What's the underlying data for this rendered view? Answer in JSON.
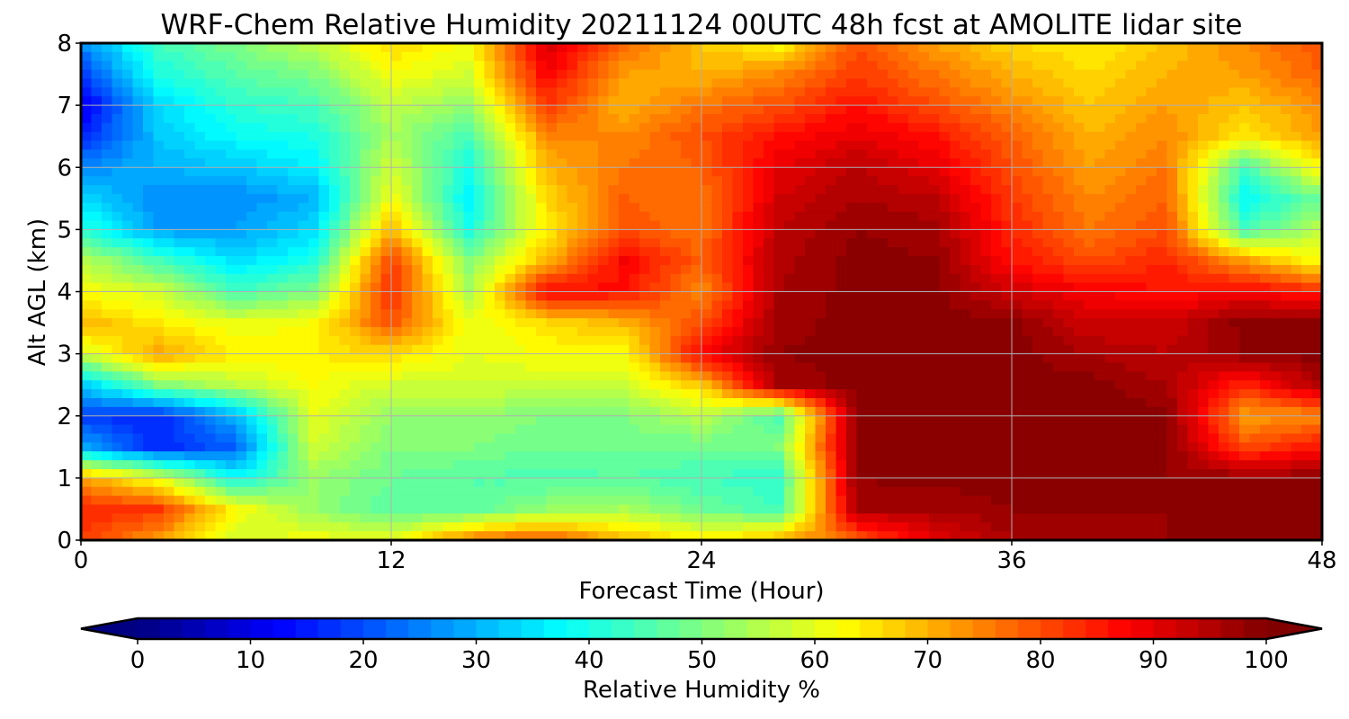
{
  "chart_data": {
    "type": "heatmap",
    "title": "WRF-Chem Relative Humidity 20211124 00UTC 48h fcst at AMOLITE lidar site",
    "xlabel": "Forecast Time (Hour)",
    "ylabel": "Alt AGL (km)",
    "xlim": [
      0,
      48
    ],
    "ylim": [
      0,
      8
    ],
    "xticks": [
      "0",
      "12",
      "24",
      "36",
      "48"
    ],
    "yticks": [
      "0",
      "1",
      "2",
      "3",
      "4",
      "5",
      "6",
      "7",
      "8"
    ],
    "grid": true,
    "colorbar": {
      "label": "Relative Humidity %",
      "range": [
        0,
        100
      ],
      "ticks": [
        "0",
        "10",
        "20",
        "30",
        "40",
        "50",
        "60",
        "70",
        "80",
        "90",
        "100"
      ],
      "extend": "both",
      "colormap": "jet",
      "levels": 50
    },
    "x": [
      0,
      3,
      6,
      9,
      12,
      15,
      18,
      21,
      24,
      27,
      30,
      33,
      36,
      39,
      42,
      45,
      48
    ],
    "y": [
      0,
      0.5,
      1,
      1.5,
      2,
      2.5,
      3,
      3.5,
      4,
      4.5,
      5,
      5.5,
      6,
      6.5,
      7,
      7.5,
      8
    ],
    "z": [
      [
        82,
        72,
        58,
        62,
        60,
        76,
        80,
        70,
        64,
        70,
        78,
        90,
        96,
        96,
        98,
        98,
        98
      ],
      [
        84,
        82,
        62,
        52,
        46,
        46,
        52,
        54,
        48,
        44,
        96,
        96,
        98,
        98,
        98,
        98,
        98
      ],
      [
        72,
        60,
        38,
        52,
        48,
        46,
        45,
        46,
        44,
        42,
        98,
        99,
        99,
        99,
        98,
        98,
        98
      ],
      [
        30,
        16,
        22,
        58,
        50,
        50,
        48,
        48,
        48,
        50,
        99,
        99,
        99,
        99,
        99,
        80,
        86
      ],
      [
        18,
        16,
        30,
        60,
        52,
        52,
        50,
        50,
        56,
        44,
        99,
        99,
        99,
        99,
        99,
        72,
        74
      ],
      [
        32,
        50,
        56,
        62,
        58,
        58,
        58,
        58,
        68,
        96,
        99,
        99,
        99,
        99,
        96,
        84,
        96
      ],
      [
        58,
        72,
        64,
        64,
        66,
        60,
        62,
        62,
        88,
        98,
        99,
        99,
        99,
        96,
        94,
        98,
        99
      ],
      [
        70,
        64,
        60,
        62,
        80,
        60,
        66,
        70,
        80,
        97,
        99,
        99,
        99,
        92,
        92,
        99,
        99
      ],
      [
        62,
        58,
        44,
        50,
        84,
        54,
        88,
        86,
        74,
        96,
        99,
        99,
        92,
        88,
        86,
        88,
        84
      ],
      [
        56,
        44,
        34,
        40,
        82,
        50,
        70,
        88,
        78,
        95,
        99,
        98,
        86,
        80,
        84,
        72,
        62
      ],
      [
        42,
        28,
        28,
        34,
        70,
        40,
        64,
        80,
        76,
        94,
        98,
        97,
        84,
        76,
        80,
        44,
        56
      ],
      [
        34,
        26,
        26,
        30,
        62,
        36,
        66,
        78,
        76,
        92,
        96,
        94,
        82,
        74,
        78,
        38,
        48
      ],
      [
        26,
        30,
        32,
        36,
        58,
        40,
        70,
        76,
        78,
        90,
        94,
        90,
        80,
        72,
        76,
        44,
        64
      ],
      [
        16,
        32,
        38,
        40,
        54,
        44,
        74,
        74,
        80,
        86,
        90,
        86,
        78,
        70,
        74,
        64,
        72
      ],
      [
        10,
        34,
        42,
        44,
        56,
        52,
        82,
        70,
        76,
        80,
        86,
        80,
        74,
        68,
        72,
        68,
        74
      ],
      [
        18,
        40,
        46,
        50,
        62,
        58,
        88,
        72,
        70,
        74,
        82,
        76,
        70,
        66,
        70,
        72,
        78
      ],
      [
        26,
        44,
        50,
        56,
        66,
        62,
        92,
        78,
        68,
        62,
        80,
        72,
        66,
        64,
        68,
        74,
        80
      ]
    ]
  }
}
